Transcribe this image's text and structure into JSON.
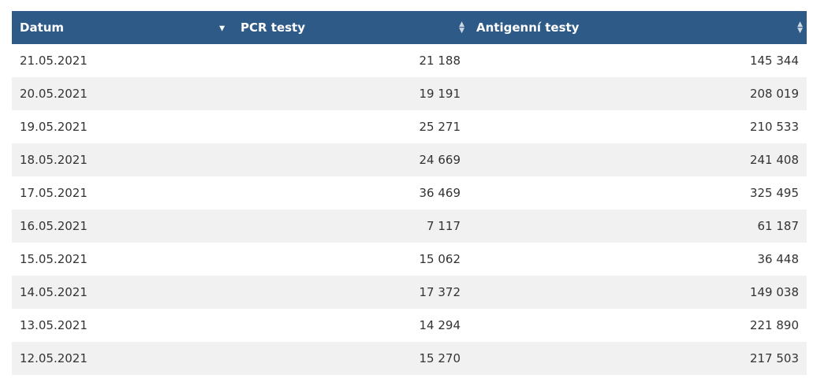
{
  "table": {
    "headers": {
      "date": "Datum",
      "pcr": "PCR testy",
      "antigen": "Antigenní testy"
    },
    "rows": [
      {
        "date": "21.05.2021",
        "pcr": "21 188",
        "antigen": "145 344"
      },
      {
        "date": "20.05.2021",
        "pcr": "19 191",
        "antigen": "208 019"
      },
      {
        "date": "19.05.2021",
        "pcr": "25 271",
        "antigen": "210 533"
      },
      {
        "date": "18.05.2021",
        "pcr": "24 669",
        "antigen": "241 408"
      },
      {
        "date": "17.05.2021",
        "pcr": "36 469",
        "antigen": "325 495"
      },
      {
        "date": "16.05.2021",
        "pcr": "7 117",
        "antigen": "61 187"
      },
      {
        "date": "15.05.2021",
        "pcr": "15 062",
        "antigen": "36 448"
      },
      {
        "date": "14.05.2021",
        "pcr": "17 372",
        "antigen": "149 038"
      },
      {
        "date": "13.05.2021",
        "pcr": "14 294",
        "antigen": "221 890"
      },
      {
        "date": "12.05.2021",
        "pcr": "15 270",
        "antigen": "217 503"
      }
    ]
  },
  "colors": {
    "header_bg": "#2e5a87",
    "row_alt": "#f1f1f1"
  },
  "icons": {
    "date_sort": "sort-descending-icon",
    "pcr_sort": "sort-both-icon",
    "antigen_sort": "sort-both-icon"
  }
}
